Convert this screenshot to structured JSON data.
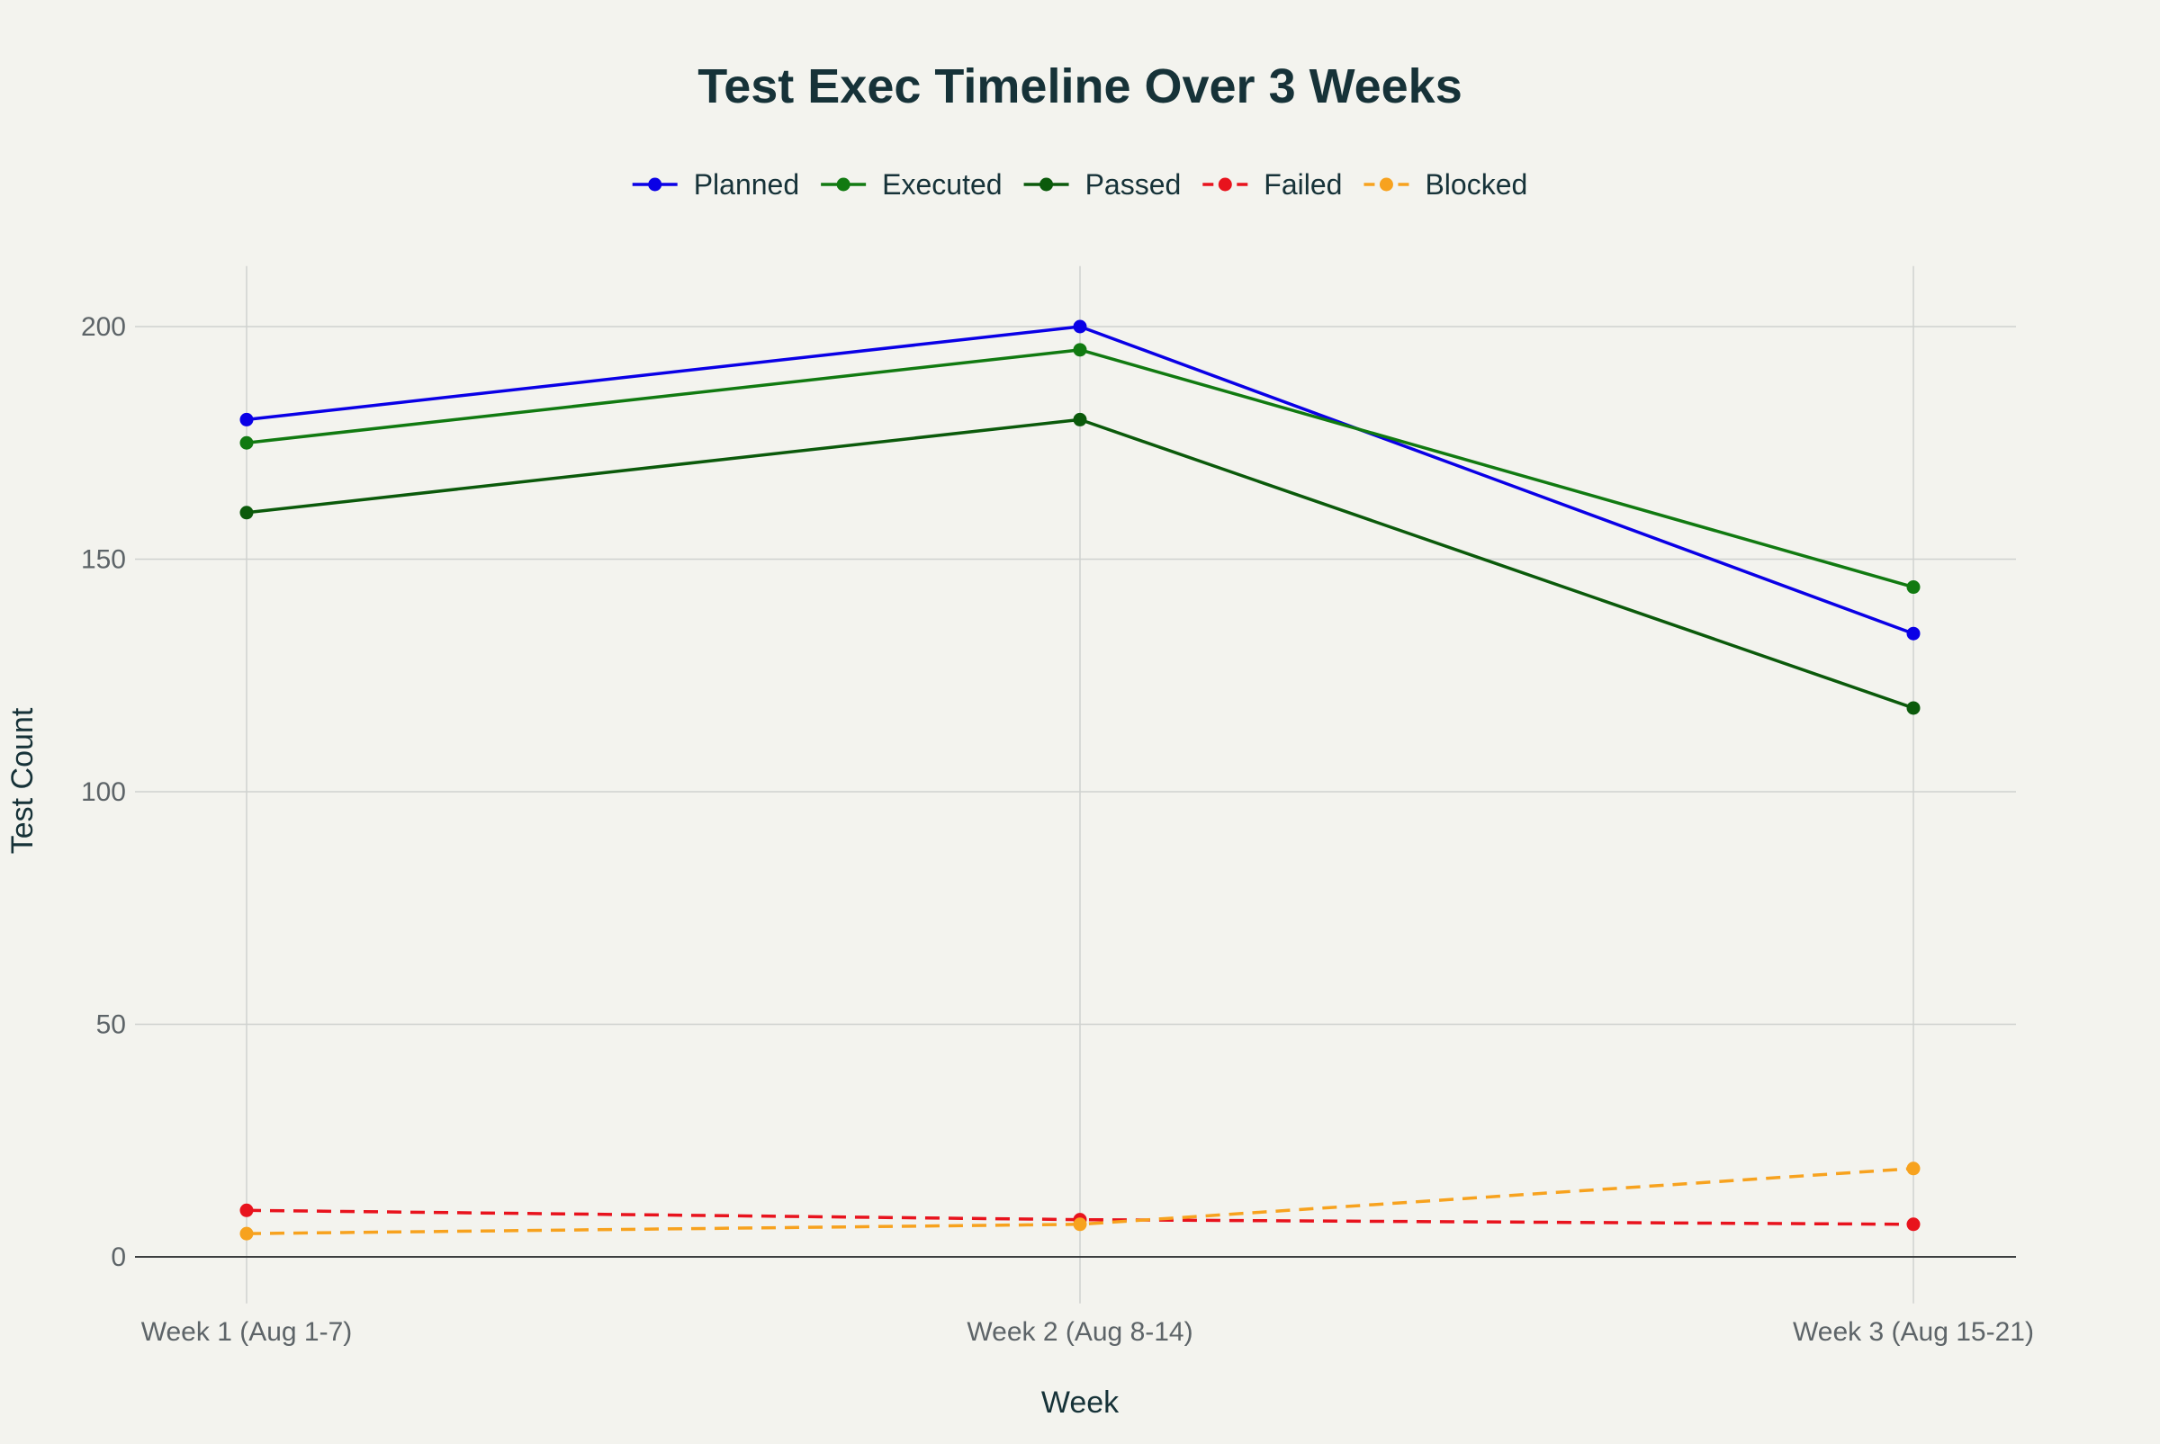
{
  "chart_data": {
    "type": "line",
    "title": "Test Exec Timeline Over 3 Weeks",
    "xlabel": "Week",
    "ylabel": "Test Count",
    "categories": [
      "Week 1 (Aug 1-7)",
      "Week 2 (Aug 8-14)",
      "Week 3 (Aug 15-21)"
    ],
    "ylim": [
      -10,
      213
    ],
    "yticks": [
      0,
      50,
      100,
      150,
      200
    ],
    "grid": true,
    "legend_position": "top-center",
    "series": [
      {
        "name": "Planned",
        "values": [
          180,
          200,
          134
        ],
        "color": "#0a00e6",
        "dash": "solid"
      },
      {
        "name": "Executed",
        "values": [
          175,
          195,
          144
        ],
        "color": "#117a11",
        "dash": "solid"
      },
      {
        "name": "Passed",
        "values": [
          160,
          180,
          118
        ],
        "color": "#0b5a0b",
        "dash": "solid"
      },
      {
        "name": "Failed",
        "values": [
          10,
          8,
          7
        ],
        "color": "#e8131d",
        "dash": "dash"
      },
      {
        "name": "Blocked",
        "values": [
          5,
          7,
          19
        ],
        "color": "#f7a21e",
        "dash": "dash"
      }
    ]
  },
  "colors": {
    "background": "#f3f3ee",
    "text_dark": "#163238",
    "tick_text": "#5d6468",
    "grid": "#cfd2cf",
    "zero_line": "#3c3f40"
  }
}
